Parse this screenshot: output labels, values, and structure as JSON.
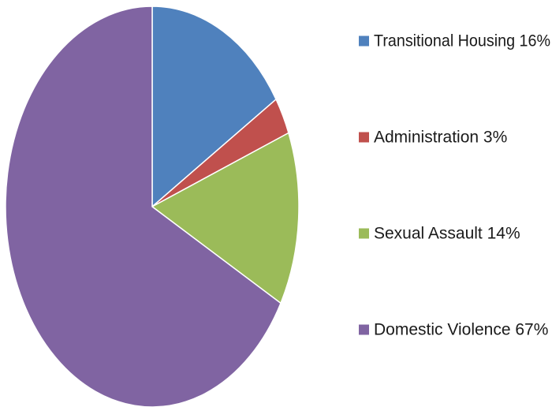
{
  "chart_data": {
    "type": "pie",
    "title": "",
    "slices": [
      {
        "label": "Transitional Housing 16%",
        "value": 16,
        "color": "#4f81bd"
      },
      {
        "label": "Administration 3%",
        "value": 3,
        "color": "#c0504d"
      },
      {
        "label": "Sexual Assault 14%",
        "value": 14,
        "color": "#9bbb59"
      },
      {
        "label": "Domestic Violence 67%",
        "value": 67,
        "color": "#8064a2"
      }
    ],
    "start_angle_deg": 0,
    "direction": "clockwise",
    "legend": {
      "position": "right"
    }
  }
}
